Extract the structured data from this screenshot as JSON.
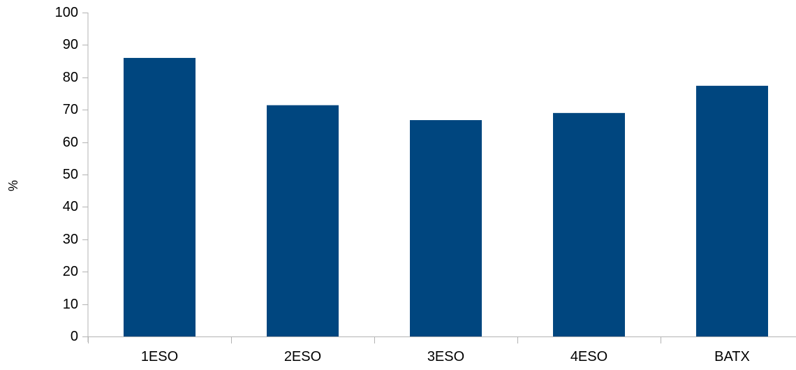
{
  "chart_data": {
    "type": "bar",
    "title": "",
    "xlabel": "",
    "ylabel": "%",
    "categories": [
      "1ESO",
      "2ESO",
      "3ESO",
      "4ESO",
      "BATX"
    ],
    "values": [
      86,
      71.4,
      66.8,
      69,
      77.4
    ],
    "ylim": [
      0,
      100
    ],
    "yticks": [
      0,
      10,
      20,
      30,
      40,
      50,
      60,
      70,
      80,
      90,
      100
    ],
    "grid": false,
    "legend": "none",
    "bar_color": "#00467f",
    "axis_color": "#b3b3b3"
  }
}
